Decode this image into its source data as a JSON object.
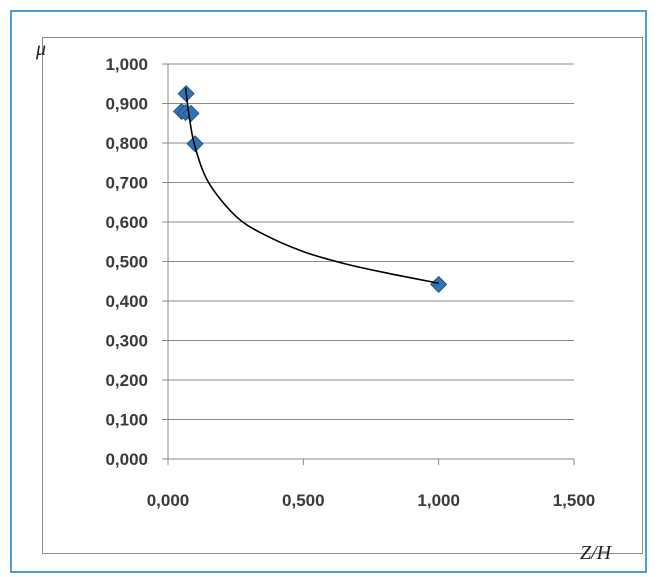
{
  "chart_data": {
    "type": "scatter",
    "xlabel": "Z/H",
    "ylabel": "μ",
    "xlim": [
      0,
      1.5
    ],
    "ylim": [
      0,
      1
    ],
    "x_ticks": [
      "0,000",
      "0,500",
      "1,000",
      "1,500"
    ],
    "y_ticks": [
      "0,000",
      "0,100",
      "0,200",
      "0,300",
      "0,400",
      "0,500",
      "0,600",
      "0,700",
      "0,800",
      "0,900",
      "1,000"
    ],
    "grid": "horizontal",
    "marker_color": "#2e75b6",
    "trendline_color": "#000000",
    "series": [
      {
        "points": [
          {
            "x": 0.067,
            "y": 0.925
          },
          {
            "x": 0.05,
            "y": 0.88
          },
          {
            "x": 0.065,
            "y": 0.877
          },
          {
            "x": 0.085,
            "y": 0.875
          },
          {
            "x": 0.1,
            "y": 0.798
          },
          {
            "x": 1.0,
            "y": 0.442
          }
        ]
      }
    ],
    "trendline": {
      "type": "power",
      "points": [
        {
          "x": 0.065,
          "y": 0.94
        },
        {
          "x": 0.08,
          "y": 0.86
        },
        {
          "x": 0.1,
          "y": 0.79
        },
        {
          "x": 0.15,
          "y": 0.7
        },
        {
          "x": 0.25,
          "y": 0.615
        },
        {
          "x": 0.35,
          "y": 0.57
        },
        {
          "x": 0.5,
          "y": 0.525
        },
        {
          "x": 0.65,
          "y": 0.495
        },
        {
          "x": 0.8,
          "y": 0.472
        },
        {
          "x": 1.0,
          "y": 0.445
        }
      ]
    }
  }
}
